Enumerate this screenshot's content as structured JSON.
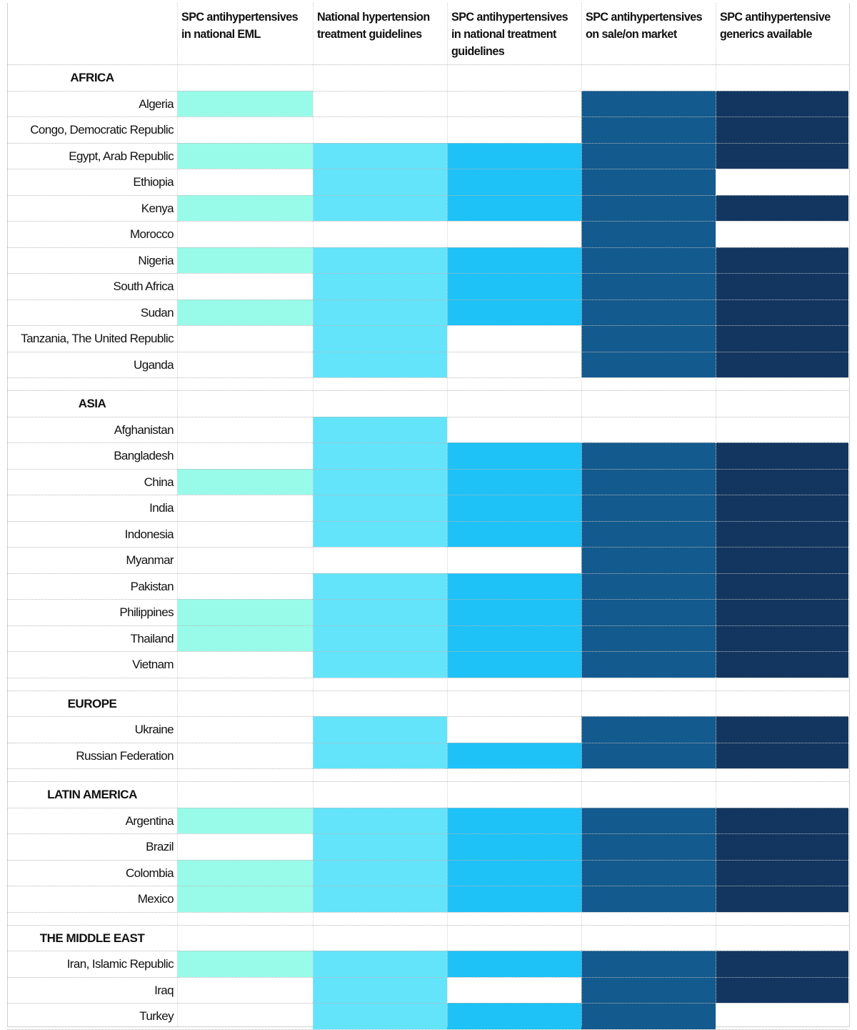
{
  "chart_data": {
    "type": "heatmap",
    "columns": [
      {
        "label": "SPC antihypertensives in national EML",
        "color": "#98fbe9"
      },
      {
        "label": "National hypertension treatment guidelines",
        "color": "#63e4fb"
      },
      {
        "label": "SPC antihypertensives in national treatment guidelines",
        "color": "#1ec2f7"
      },
      {
        "label": "SPC antihypertensives on sale/on market",
        "color": "#135a8e"
      },
      {
        "label": "SPC antihypertensive generics available",
        "color": "#123660"
      }
    ],
    "regions": [
      {
        "name": "AFRICA",
        "countries": [
          {
            "name": "Algeria",
            "values": [
              1,
              0,
              0,
              1,
              1
            ]
          },
          {
            "name": "Congo, Democratic Republic",
            "values": [
              0,
              0,
              0,
              1,
              1
            ]
          },
          {
            "name": "Egypt, Arab Republic",
            "values": [
              1,
              1,
              1,
              1,
              1
            ]
          },
          {
            "name": "Ethiopia",
            "values": [
              0,
              1,
              1,
              1,
              0
            ]
          },
          {
            "name": "Kenya",
            "values": [
              1,
              1,
              1,
              1,
              1
            ]
          },
          {
            "name": "Morocco",
            "values": [
              0,
              0,
              0,
              1,
              0
            ]
          },
          {
            "name": "Nigeria",
            "values": [
              1,
              1,
              1,
              1,
              1
            ]
          },
          {
            "name": "South Africa",
            "values": [
              0,
              1,
              1,
              1,
              1
            ]
          },
          {
            "name": "Sudan",
            "values": [
              1,
              1,
              1,
              1,
              1
            ]
          },
          {
            "name": "Tanzania, The United Republic",
            "values": [
              0,
              1,
              0,
              1,
              1
            ]
          },
          {
            "name": "Uganda",
            "values": [
              0,
              1,
              0,
              1,
              1
            ]
          }
        ]
      },
      {
        "name": "ASIA",
        "countries": [
          {
            "name": "Afghanistan",
            "values": [
              0,
              1,
              0,
              0,
              0
            ]
          },
          {
            "name": "Bangladesh",
            "values": [
              0,
              1,
              1,
              1,
              1
            ]
          },
          {
            "name": "China",
            "values": [
              1,
              1,
              1,
              1,
              1
            ]
          },
          {
            "name": "India",
            "values": [
              0,
              1,
              1,
              1,
              1
            ]
          },
          {
            "name": "Indonesia",
            "values": [
              0,
              1,
              1,
              1,
              1
            ]
          },
          {
            "name": "Myanmar",
            "values": [
              0,
              0,
              0,
              1,
              1
            ]
          },
          {
            "name": "Pakistan",
            "values": [
              0,
              1,
              1,
              1,
              1
            ]
          },
          {
            "name": "Philippines",
            "values": [
              1,
              1,
              1,
              1,
              1
            ]
          },
          {
            "name": "Thailand",
            "values": [
              1,
              1,
              1,
              1,
              1
            ]
          },
          {
            "name": "Vietnam",
            "values": [
              0,
              1,
              1,
              1,
              1
            ]
          }
        ]
      },
      {
        "name": "EUROPE",
        "countries": [
          {
            "name": "Ukraine",
            "values": [
              0,
              1,
              0,
              1,
              1
            ]
          },
          {
            "name": "Russian Federation",
            "values": [
              0,
              1,
              1,
              1,
              1
            ]
          }
        ]
      },
      {
        "name": "LATIN AMERICA",
        "countries": [
          {
            "name": "Argentina",
            "values": [
              1,
              1,
              1,
              1,
              1
            ]
          },
          {
            "name": "Brazil",
            "values": [
              0,
              1,
              1,
              1,
              1
            ]
          },
          {
            "name": "Colombia",
            "values": [
              1,
              1,
              1,
              1,
              1
            ]
          },
          {
            "name": "Mexico",
            "values": [
              1,
              1,
              1,
              1,
              1
            ]
          }
        ]
      },
      {
        "name": "THE MIDDLE EAST",
        "countries": [
          {
            "name": "Iran, Islamic Republic",
            "values": [
              1,
              1,
              1,
              1,
              1
            ]
          },
          {
            "name": "Iraq",
            "values": [
              0,
              1,
              0,
              1,
              1
            ]
          },
          {
            "name": "Turkey",
            "values": [
              0,
              1,
              1,
              1,
              0
            ]
          }
        ]
      }
    ]
  }
}
